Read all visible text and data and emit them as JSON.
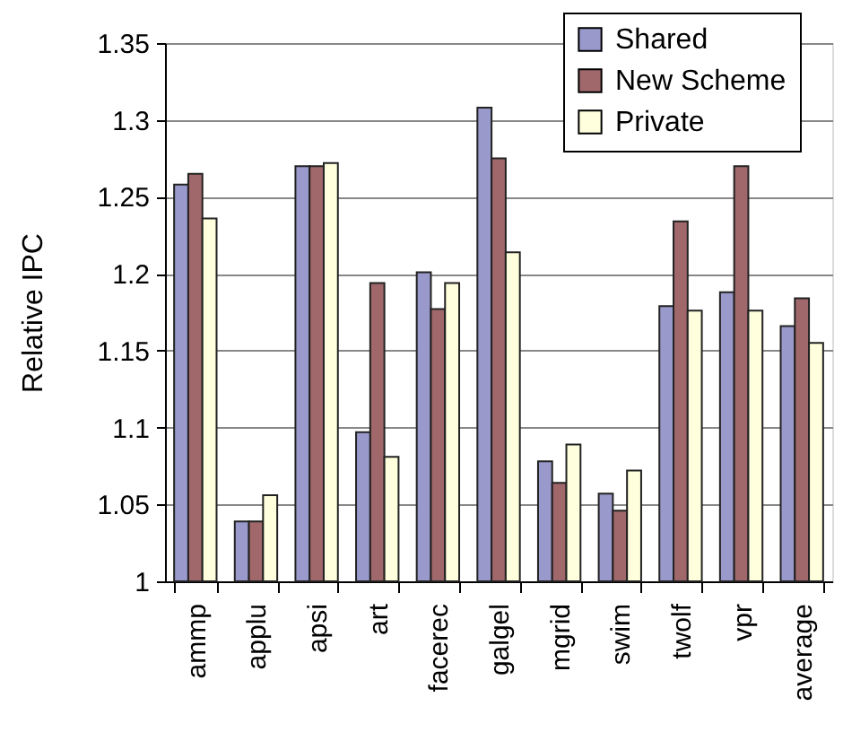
{
  "chart_data": {
    "type": "bar",
    "ylabel": "Relative IPC",
    "categories": [
      "ammp",
      "applu",
      "apsi",
      "art",
      "facerec",
      "galgel",
      "mgrid",
      "swim",
      "twolf",
      "vpr",
      "average"
    ],
    "series": [
      {
        "name": "Shared",
        "color": "#9999cc",
        "values": [
          1.258,
          1.039,
          1.27,
          1.097,
          1.201,
          1.308,
          1.078,
          1.057,
          1.179,
          1.188,
          1.166
        ]
      },
      {
        "name": "New Scheme",
        "color": "#a0686b",
        "values": [
          1.265,
          1.039,
          1.27,
          1.194,
          1.177,
          1.275,
          1.064,
          1.046,
          1.234,
          1.27,
          1.184
        ]
      },
      {
        "name": "Private",
        "color": "#ffffdd",
        "values": [
          1.236,
          1.056,
          1.272,
          1.081,
          1.194,
          1.214,
          1.089,
          1.072,
          1.176,
          1.176,
          1.155
        ]
      }
    ],
    "ylim": [
      1,
      1.35
    ],
    "yticks": [
      1,
      1.05,
      1.1,
      1.15,
      1.2,
      1.25,
      1.3,
      1.35
    ],
    "grid": "y",
    "legend": "top right"
  }
}
